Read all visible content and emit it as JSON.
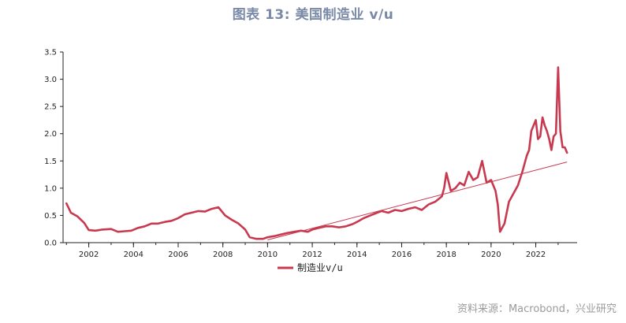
{
  "title": "图表 13: 美国制造业 v/u",
  "source": "资料来源：Macrobond，兴业研究",
  "colors": {
    "series": "#c8394f",
    "trend": "#c8394f",
    "axis": "#222222",
    "title": "#7a8aa6",
    "source": "#9a9a9a"
  },
  "chart_data": {
    "type": "line",
    "title": "图表 13: 美国制造业 v/u",
    "xlabel": "",
    "ylabel": "",
    "xlim": [
      2000.85,
      2023.85
    ],
    "ylim": [
      0.0,
      3.5
    ],
    "x_ticks": [
      "2002",
      "2004",
      "2006",
      "2008",
      "2010",
      "2012",
      "2014",
      "2016",
      "2018",
      "2020",
      "2022"
    ],
    "y_ticks": [
      "0.0",
      "0.5",
      "1.0",
      "1.5",
      "2.0",
      "2.5",
      "3.0",
      "3.5"
    ],
    "grid": false,
    "legend_position": "bottom-center",
    "series": [
      {
        "name": "制造业v/u",
        "x": [
          2001.0,
          2001.2,
          2001.5,
          2001.8,
          2002.0,
          2002.3,
          2002.6,
          2003.0,
          2003.3,
          2003.6,
          2003.9,
          2004.2,
          2004.5,
          2004.8,
          2005.1,
          2005.4,
          2005.7,
          2006.0,
          2006.3,
          2006.6,
          2006.9,
          2007.2,
          2007.5,
          2007.8,
          2008.1,
          2008.4,
          2008.7,
          2009.0,
          2009.2,
          2009.5,
          2009.8,
          2010.0,
          2010.3,
          2010.6,
          2010.9,
          2011.2,
          2011.5,
          2011.8,
          2012.0,
          2012.3,
          2012.6,
          2012.9,
          2013.2,
          2013.5,
          2013.8,
          2014.0,
          2014.3,
          2014.6,
          2014.9,
          2015.1,
          2015.4,
          2015.7,
          2016.0,
          2016.3,
          2016.6,
          2016.9,
          2017.2,
          2017.5,
          2017.8,
          2017.9,
          2018.0,
          2018.2,
          2018.4,
          2018.6,
          2018.8,
          2019.0,
          2019.2,
          2019.4,
          2019.6,
          2019.8,
          2020.0,
          2020.2,
          2020.3,
          2020.4,
          2020.6,
          2020.8,
          2021.0,
          2021.2,
          2021.4,
          2021.6,
          2021.7,
          2021.8,
          2022.0,
          2022.1,
          2022.2,
          2022.3,
          2022.4,
          2022.5,
          2022.6,
          2022.7,
          2022.8,
          2022.9,
          2023.0,
          2023.1,
          2023.2,
          2023.3,
          2023.4
        ],
        "values": [
          0.72,
          0.55,
          0.48,
          0.36,
          0.23,
          0.22,
          0.24,
          0.25,
          0.2,
          0.21,
          0.22,
          0.27,
          0.3,
          0.35,
          0.35,
          0.38,
          0.4,
          0.45,
          0.52,
          0.55,
          0.58,
          0.57,
          0.62,
          0.65,
          0.5,
          0.42,
          0.35,
          0.24,
          0.1,
          0.07,
          0.07,
          0.1,
          0.12,
          0.15,
          0.18,
          0.2,
          0.22,
          0.2,
          0.24,
          0.27,
          0.3,
          0.3,
          0.28,
          0.3,
          0.34,
          0.38,
          0.45,
          0.5,
          0.55,
          0.58,
          0.55,
          0.6,
          0.58,
          0.62,
          0.65,
          0.6,
          0.7,
          0.75,
          0.85,
          1.0,
          1.28,
          0.95,
          1.0,
          1.1,
          1.05,
          1.3,
          1.15,
          1.2,
          1.5,
          1.1,
          1.15,
          0.95,
          0.7,
          0.2,
          0.35,
          0.75,
          0.9,
          1.05,
          1.3,
          1.6,
          1.7,
          2.05,
          2.25,
          1.9,
          1.95,
          2.3,
          2.15,
          2.05,
          1.9,
          1.7,
          1.95,
          2.0,
          3.22,
          2.05,
          1.75,
          1.75,
          1.65
        ]
      }
    ],
    "trendline": {
      "x": [
        2010.0,
        2023.4
      ],
      "values": [
        0.05,
        1.48
      ]
    }
  }
}
